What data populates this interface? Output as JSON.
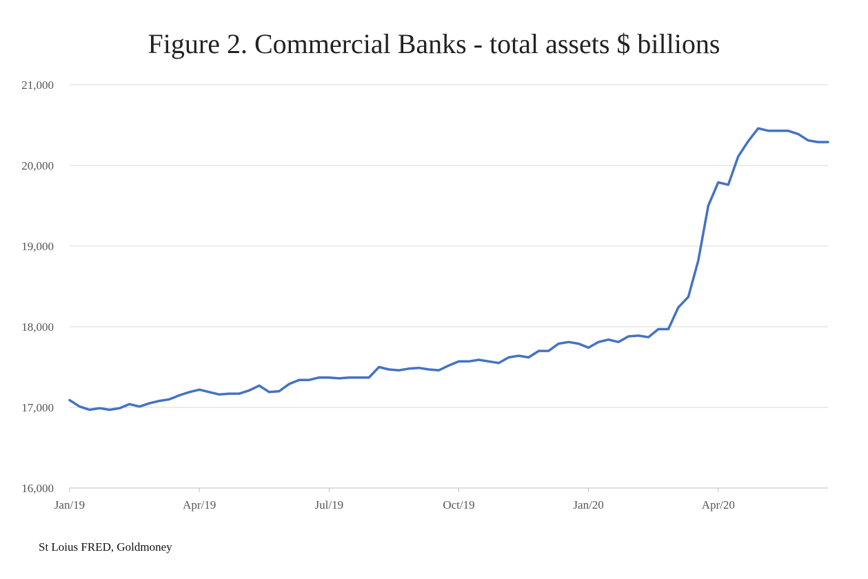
{
  "chart_data": {
    "type": "line",
    "title": "Figure 2. Commercial Banks - total assets $ billions",
    "xlabel": "",
    "ylabel": "",
    "ylim": [
      16000,
      21000
    ],
    "yticks": [
      16000,
      17000,
      18000,
      19000,
      20000,
      21000
    ],
    "ytick_labels": [
      "16,000",
      "17,000",
      "18,000",
      "19,000",
      "20,000",
      "21,000"
    ],
    "xtick_labels": [
      "Jan/19",
      "Apr/19",
      "Jul/19",
      "Oct/19",
      "Jan/20",
      "Apr/20"
    ],
    "xtick_positions": [
      0,
      13,
      26,
      39,
      52,
      65
    ],
    "grid": true,
    "legend": "none",
    "series": [
      {
        "color": "#4472C4",
        "values": [
          17090,
          17010,
          16970,
          16990,
          16970,
          16990,
          17040,
          17010,
          17050,
          17080,
          17100,
          17150,
          17190,
          17220,
          17190,
          17160,
          17170,
          17170,
          17210,
          17270,
          17190,
          17200,
          17290,
          17340,
          17340,
          17370,
          17370,
          17360,
          17370,
          17370,
          17370,
          17500,
          17470,
          17460,
          17480,
          17490,
          17470,
          17460,
          17520,
          17570,
          17570,
          17590,
          17570,
          17550,
          17620,
          17640,
          17620,
          17700,
          17700,
          17790,
          17810,
          17790,
          17740,
          17810,
          17840,
          17810,
          17880,
          17890,
          17870,
          17970,
          17970,
          18240,
          18370,
          18820,
          19500,
          19790,
          19760,
          20110,
          20300,
          20460,
          20430,
          20430,
          20430,
          20390,
          20310,
          20290,
          20290
        ]
      }
    ]
  },
  "source_text": "St Loius FRED, Goldmoney"
}
